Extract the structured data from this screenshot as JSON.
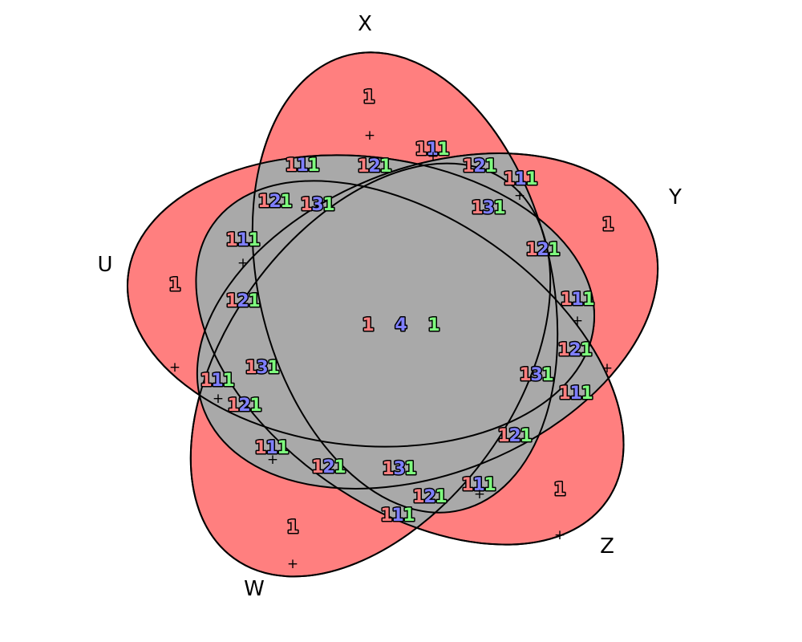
{
  "diagram": {
    "type": "venn-5",
    "colors": {
      "outer_fill": "#ff7f7f",
      "inner_fill": "#a9a9a9",
      "digit_first": "#ff7f7f",
      "digit_middle": "#7f7fff",
      "digit_last": "#7fff7f",
      "stroke": "#000000"
    },
    "sets": [
      {
        "id": "X",
        "label": "X"
      },
      {
        "id": "Y",
        "label": "Y"
      },
      {
        "id": "Z",
        "label": "Z"
      },
      {
        "id": "W",
        "label": "W"
      },
      {
        "id": "U",
        "label": "U"
      }
    ],
    "regions": [
      {
        "id": "x-only",
        "text": "1"
      },
      {
        "id": "y-only",
        "text": "1"
      },
      {
        "id": "z-only",
        "text": "1"
      },
      {
        "id": "w-only",
        "text": "1"
      },
      {
        "id": "u-only",
        "text": "1"
      },
      {
        "id": "center",
        "text": "141"
      },
      {
        "id": "r-top-1",
        "text": "111"
      },
      {
        "id": "r-top-2",
        "text": "121"
      },
      {
        "id": "r-top-3",
        "text": "111"
      },
      {
        "id": "r-top-4",
        "text": "121"
      },
      {
        "id": "r-top-5",
        "text": "111"
      },
      {
        "id": "r-top-6",
        "text": "121"
      },
      {
        "id": "r-top-7",
        "text": "131"
      },
      {
        "id": "r-top-8",
        "text": "131"
      },
      {
        "id": "r-right-1",
        "text": "121"
      },
      {
        "id": "r-right-2",
        "text": "111"
      },
      {
        "id": "r-right-3",
        "text": "121"
      },
      {
        "id": "r-right-4",
        "text": "131"
      },
      {
        "id": "r-right-5",
        "text": "111"
      },
      {
        "id": "r-right-6",
        "text": "121"
      },
      {
        "id": "r-bottom-1",
        "text": "111"
      },
      {
        "id": "r-bottom-2",
        "text": "121"
      },
      {
        "id": "r-bottom-3",
        "text": "131"
      },
      {
        "id": "r-bottom-4",
        "text": "111"
      },
      {
        "id": "r-bottom-5",
        "text": "121"
      },
      {
        "id": "r-left-1",
        "text": "111"
      },
      {
        "id": "r-left-2",
        "text": "121"
      },
      {
        "id": "r-left-3",
        "text": "131"
      },
      {
        "id": "r-left-4",
        "text": "111"
      },
      {
        "id": "r-left-5",
        "text": "121"
      },
      {
        "id": "r-left-6",
        "text": "111"
      }
    ]
  }
}
